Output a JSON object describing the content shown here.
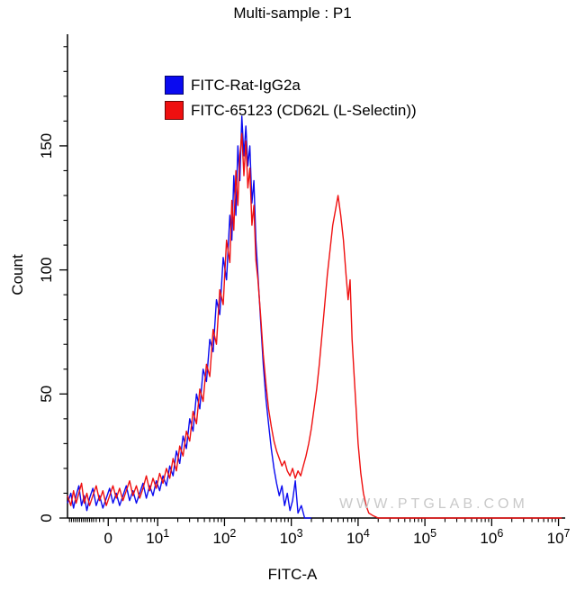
{
  "chart_data": {
    "type": "line",
    "chart_kind": "flow-cytometry-overlay-histogram",
    "title": "Multi-sample : P1",
    "xlabel": "FITC-A",
    "ylabel": "Count",
    "x_scale": "biexponential-log",
    "x_display_range": [
      -0.35,
      7.1
    ],
    "ylim": [
      0,
      195
    ],
    "y_major_ticks": [
      0,
      50,
      100,
      150
    ],
    "y_minor_ticks": [
      10,
      20,
      30,
      40,
      60,
      70,
      80,
      90,
      110,
      120,
      130,
      140,
      160,
      170,
      180,
      190
    ],
    "x_major_ticks": [
      {
        "label": "0",
        "du": 0.26
      },
      {
        "mant": "10",
        "exp": "1",
        "du": 1
      },
      {
        "mant": "10",
        "exp": "2",
        "du": 2
      },
      {
        "mant": "10",
        "exp": "3",
        "du": 3
      },
      {
        "mant": "10",
        "exp": "4",
        "du": 4
      },
      {
        "mant": "10",
        "exp": "5",
        "du": 5
      },
      {
        "mant": "10",
        "exp": "6",
        "du": 6
      },
      {
        "mant": "10",
        "exp": "7",
        "du": 7
      }
    ],
    "x_minor_ticks": [
      -0.32,
      -0.29,
      -0.26,
      -0.23,
      -0.2,
      -0.17,
      -0.14,
      -0.11,
      -0.08,
      -0.05,
      -0.02,
      0.01,
      0.04,
      0.08,
      0.13,
      0.19,
      0.38,
      0.5,
      0.6,
      0.69,
      0.77,
      0.84,
      0.9,
      0.95,
      1.301,
      1.477,
      1.602,
      1.699,
      1.778,
      1.845,
      1.903,
      1.954,
      2.301,
      2.477,
      2.602,
      2.699,
      2.778,
      2.845,
      2.903,
      2.954,
      3.301,
      3.477,
      3.602,
      3.699,
      3.778,
      3.845,
      3.903,
      3.954,
      4.301,
      4.477,
      4.602,
      4.699,
      4.778,
      4.845,
      4.903,
      4.954,
      5.301,
      5.477,
      5.602,
      5.699,
      5.778,
      5.845,
      5.903,
      5.954,
      6.301,
      6.477,
      6.602,
      6.699,
      6.778,
      6.845,
      6.903,
      6.954
    ],
    "legend": [
      {
        "name": "FITC-Rat-IgG2a",
        "color": "#0a0af0"
      },
      {
        "name": "FITC-65123 (CD62L (L-Selectin))",
        "color": "#ef1010"
      }
    ],
    "watermark": "WWW.PTGLAB.COM",
    "watermark_color": "#c9c9c9",
    "axis_color": "#000000",
    "series": [
      {
        "name": "FITC-Rat-IgG2a",
        "color": "#0a0af0",
        "points": [
          [
            -0.35,
            6
          ],
          [
            -0.3,
            10
          ],
          [
            -0.26,
            4
          ],
          [
            -0.22,
            9
          ],
          [
            -0.18,
            13
          ],
          [
            -0.14,
            5
          ],
          [
            -0.1,
            9
          ],
          [
            -0.06,
            3
          ],
          [
            -0.02,
            8
          ],
          [
            0.03,
            12
          ],
          [
            0.08,
            5
          ],
          [
            0.13,
            9
          ],
          [
            0.18,
            4
          ],
          [
            0.23,
            8
          ],
          [
            0.28,
            12
          ],
          [
            0.33,
            6
          ],
          [
            0.38,
            10
          ],
          [
            0.43,
            5
          ],
          [
            0.48,
            9
          ],
          [
            0.53,
            13
          ],
          [
            0.58,
            7
          ],
          [
            0.63,
            11
          ],
          [
            0.68,
            6
          ],
          [
            0.73,
            10
          ],
          [
            0.78,
            14
          ],
          [
            0.83,
            8
          ],
          [
            0.88,
            13
          ],
          [
            0.93,
            9
          ],
          [
            0.98,
            15
          ],
          [
            1.03,
            11
          ],
          [
            1.08,
            17
          ],
          [
            1.13,
            13
          ],
          [
            1.18,
            21
          ],
          [
            1.23,
            17
          ],
          [
            1.28,
            27
          ],
          [
            1.33,
            22
          ],
          [
            1.38,
            33
          ],
          [
            1.43,
            28
          ],
          [
            1.48,
            40
          ],
          [
            1.53,
            35
          ],
          [
            1.58,
            50
          ],
          [
            1.63,
            44
          ],
          [
            1.68,
            60
          ],
          [
            1.73,
            55
          ],
          [
            1.78,
            72
          ],
          [
            1.83,
            67
          ],
          [
            1.88,
            88
          ],
          [
            1.93,
            82
          ],
          [
            1.98,
            105
          ],
          [
            2.03,
            96
          ],
          [
            2.08,
            122
          ],
          [
            2.11,
            112
          ],
          [
            2.14,
            138
          ],
          [
            2.17,
            122
          ],
          [
            2.2,
            150
          ],
          [
            2.23,
            136
          ],
          [
            2.26,
            162
          ],
          [
            2.29,
            146
          ],
          [
            2.32,
            158
          ],
          [
            2.35,
            142
          ],
          [
            2.38,
            150
          ],
          [
            2.41,
            127
          ],
          [
            2.44,
            136
          ],
          [
            2.47,
            112
          ],
          [
            2.5,
            98
          ],
          [
            2.54,
            80
          ],
          [
            2.58,
            62
          ],
          [
            2.62,
            48
          ],
          [
            2.66,
            38
          ],
          [
            2.7,
            28
          ],
          [
            2.74,
            20
          ],
          [
            2.78,
            14
          ],
          [
            2.82,
            9
          ],
          [
            2.86,
            13
          ],
          [
            2.9,
            5
          ],
          [
            2.94,
            10
          ],
          [
            2.98,
            3
          ],
          [
            3.02,
            7
          ],
          [
            3.06,
            15
          ],
          [
            3.1,
            2
          ],
          [
            3.15,
            5
          ],
          [
            3.2,
            0
          ],
          [
            3.3,
            0
          ]
        ]
      },
      {
        "name": "FITC-65123 (CD62L (L-Selectin))",
        "color": "#ef1010",
        "points": [
          [
            -0.35,
            9
          ],
          [
            -0.3,
            5
          ],
          [
            -0.26,
            11
          ],
          [
            -0.22,
            6
          ],
          [
            -0.18,
            10
          ],
          [
            -0.14,
            14
          ],
          [
            -0.1,
            6
          ],
          [
            -0.06,
            10
          ],
          [
            -0.02,
            5
          ],
          [
            0.03,
            9
          ],
          [
            0.08,
            13
          ],
          [
            0.13,
            7
          ],
          [
            0.18,
            11
          ],
          [
            0.23,
            5
          ],
          [
            0.28,
            9
          ],
          [
            0.33,
            13
          ],
          [
            0.38,
            8
          ],
          [
            0.43,
            12
          ],
          [
            0.48,
            7
          ],
          [
            0.53,
            11
          ],
          [
            0.58,
            15
          ],
          [
            0.63,
            9
          ],
          [
            0.68,
            13
          ],
          [
            0.73,
            8
          ],
          [
            0.78,
            12
          ],
          [
            0.83,
            17
          ],
          [
            0.88,
            11
          ],
          [
            0.93,
            16
          ],
          [
            0.98,
            12
          ],
          [
            1.03,
            18
          ],
          [
            1.08,
            14
          ],
          [
            1.13,
            20
          ],
          [
            1.18,
            16
          ],
          [
            1.23,
            24
          ],
          [
            1.28,
            19
          ],
          [
            1.33,
            29
          ],
          [
            1.38,
            25
          ],
          [
            1.43,
            35
          ],
          [
            1.48,
            31
          ],
          [
            1.53,
            43
          ],
          [
            1.58,
            38
          ],
          [
            1.63,
            52
          ],
          [
            1.68,
            47
          ],
          [
            1.73,
            62
          ],
          [
            1.78,
            57
          ],
          [
            1.83,
            76
          ],
          [
            1.88,
            70
          ],
          [
            1.93,
            92
          ],
          [
            1.98,
            86
          ],
          [
            2.03,
            112
          ],
          [
            2.08,
            103
          ],
          [
            2.11,
            128
          ],
          [
            2.14,
            116
          ],
          [
            2.17,
            140
          ],
          [
            2.2,
            126
          ],
          [
            2.23,
            146
          ],
          [
            2.26,
            155
          ],
          [
            2.29,
            138
          ],
          [
            2.32,
            152
          ],
          [
            2.35,
            133
          ],
          [
            2.38,
            141
          ],
          [
            2.41,
            118
          ],
          [
            2.44,
            126
          ],
          [
            2.47,
            104
          ],
          [
            2.5,
            96
          ],
          [
            2.54,
            82
          ],
          [
            2.58,
            66
          ],
          [
            2.62,
            54
          ],
          [
            2.66,
            44
          ],
          [
            2.7,
            37
          ],
          [
            2.74,
            31
          ],
          [
            2.78,
            27
          ],
          [
            2.82,
            24
          ],
          [
            2.86,
            21
          ],
          [
            2.9,
            23
          ],
          [
            2.94,
            19
          ],
          [
            2.98,
            17
          ],
          [
            3.02,
            20
          ],
          [
            3.06,
            16
          ],
          [
            3.1,
            19
          ],
          [
            3.14,
            17
          ],
          [
            3.18,
            21
          ],
          [
            3.22,
            25
          ],
          [
            3.26,
            30
          ],
          [
            3.3,
            36
          ],
          [
            3.34,
            44
          ],
          [
            3.38,
            52
          ],
          [
            3.42,
            62
          ],
          [
            3.46,
            74
          ],
          [
            3.5,
            86
          ],
          [
            3.54,
            98
          ],
          [
            3.58,
            108
          ],
          [
            3.62,
            118
          ],
          [
            3.66,
            124
          ],
          [
            3.7,
            130
          ],
          [
            3.74,
            122
          ],
          [
            3.78,
            112
          ],
          [
            3.82,
            98
          ],
          [
            3.85,
            88
          ],
          [
            3.88,
            96
          ],
          [
            3.91,
            72
          ],
          [
            3.94,
            58
          ],
          [
            3.97,
            44
          ],
          [
            4.0,
            30
          ],
          [
            4.04,
            18
          ],
          [
            4.08,
            10
          ],
          [
            4.12,
            5
          ],
          [
            4.16,
            2
          ],
          [
            4.22,
            1
          ],
          [
            4.3,
            0
          ],
          [
            5.0,
            0
          ],
          [
            6.0,
            0
          ],
          [
            7.05,
            0
          ]
        ]
      }
    ]
  }
}
